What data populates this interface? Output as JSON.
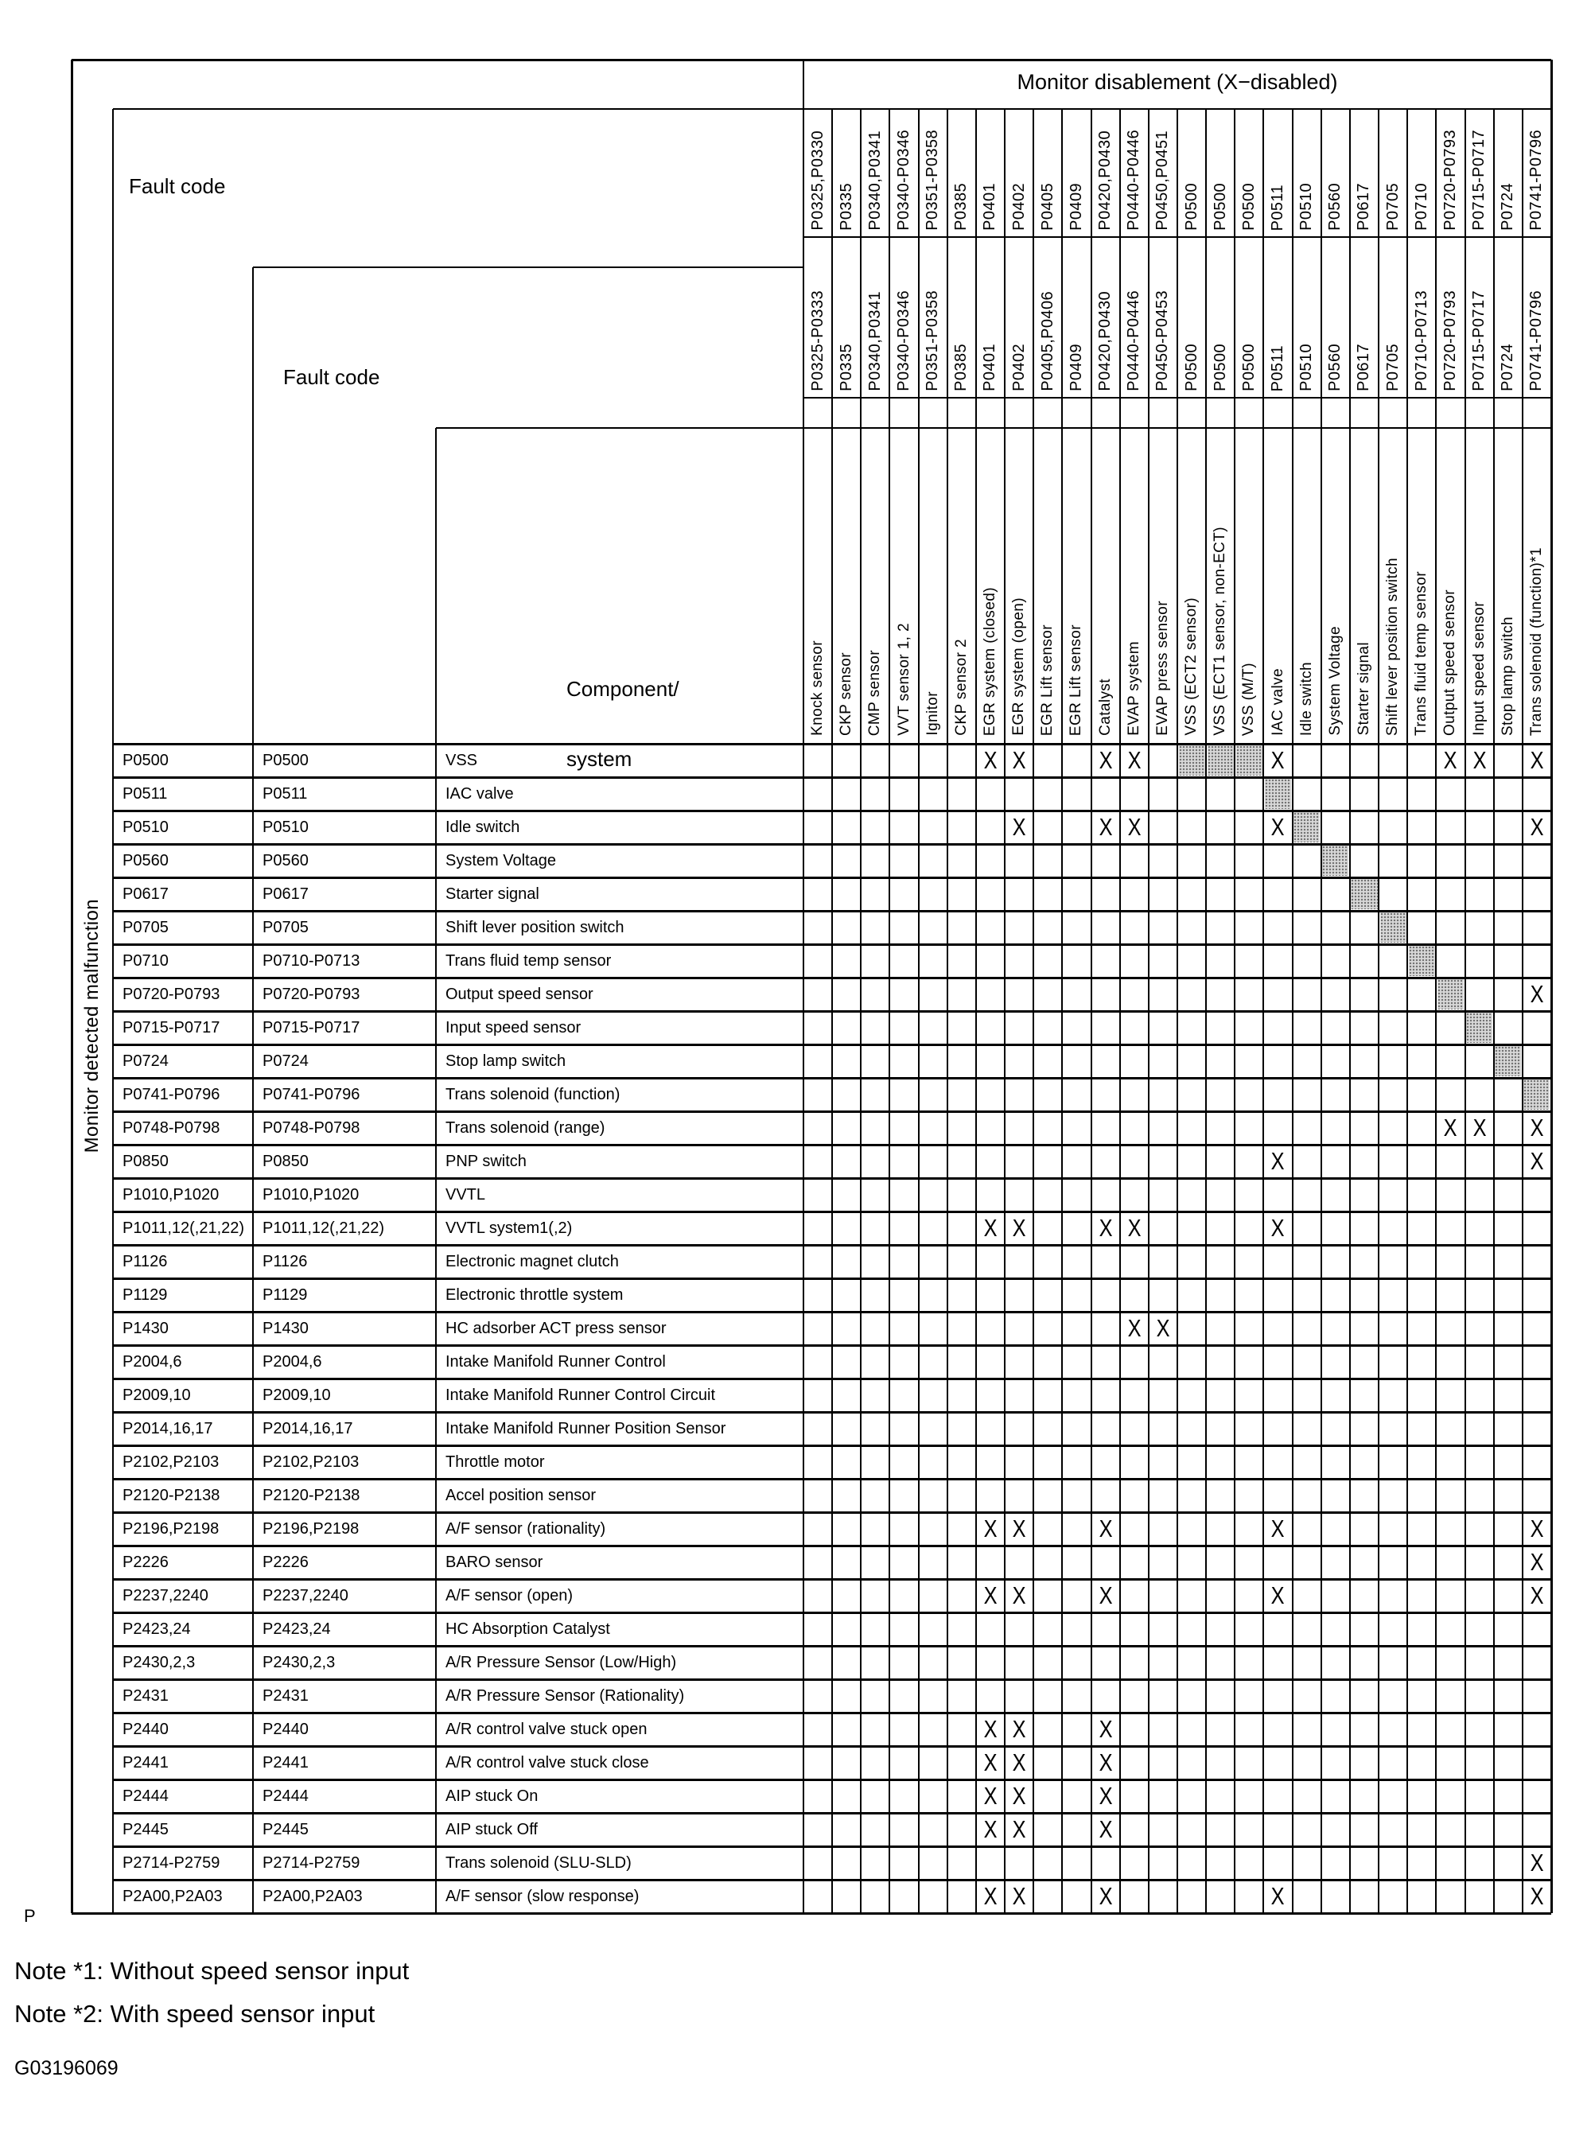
{
  "title": "Monitor disablement (X−disabled)",
  "left_label": "Monitor detected malfunction",
  "header": {
    "fault_code_label_1": "Fault code",
    "fault_code_label_2": "Fault code",
    "component_label_line1": "Component/",
    "component_label_line2": "system"
  },
  "marks": {
    "disabled_glyph": "X"
  },
  "columns": [
    {
      "code_1": "P0325,P0330",
      "code_2": "P0325-P0333",
      "component": "Knock sensor"
    },
    {
      "code_1": "P0335",
      "code_2": "P0335",
      "component": "CKP sensor"
    },
    {
      "code_1": "P0340,P0341",
      "code_2": "P0340,P0341",
      "component": "CMP sensor"
    },
    {
      "code_1": "P0340-P0346",
      "code_2": "P0340-P0346",
      "component": "VVT sensor 1, 2"
    },
    {
      "code_1": "P0351-P0358",
      "code_2": "P0351-P0358",
      "component": "Ignitor"
    },
    {
      "code_1": "P0385",
      "code_2": "P0385",
      "component": "CKP sensor 2"
    },
    {
      "code_1": "P0401",
      "code_2": "P0401",
      "component": "EGR system (closed)"
    },
    {
      "code_1": "P0402",
      "code_2": "P0402",
      "component": "EGR system (open)"
    },
    {
      "code_1": "P0405",
      "code_2": "P0405,P0406",
      "component": "EGR Lift sensor"
    },
    {
      "code_1": "P0409",
      "code_2": "P0409",
      "component": "EGR Lift sensor"
    },
    {
      "code_1": "P0420,P0430",
      "code_2": "P0420,P0430",
      "component": "Catalyst"
    },
    {
      "code_1": "P0440-P0446",
      "code_2": "P0440-P0446",
      "component": "EVAP system"
    },
    {
      "code_1": "P0450,P0451",
      "code_2": "P0450-P0453",
      "component": "EVAP press sensor"
    },
    {
      "code_1": "P0500",
      "code_2": "P0500",
      "component": "VSS (ECT2 sensor)"
    },
    {
      "code_1": "P0500",
      "code_2": "P0500",
      "component": "VSS (ECT1 sensor, non-ECT)"
    },
    {
      "code_1": "P0500",
      "code_2": "P0500",
      "component": "VSS (M/T)"
    },
    {
      "code_1": "P0511",
      "code_2": "P0511",
      "component": "IAC valve"
    },
    {
      "code_1": "P0510",
      "code_2": "P0510",
      "component": "Idle switch"
    },
    {
      "code_1": "P0560",
      "code_2": "P0560",
      "component": "System Voltage"
    },
    {
      "code_1": "P0617",
      "code_2": "P0617",
      "component": "Starter signal"
    },
    {
      "code_1": "P0705",
      "code_2": "P0705",
      "component": "Shift lever position switch"
    },
    {
      "code_1": "P0710",
      "code_2": "P0710-P0713",
      "component": "Trans fluid temp sensor"
    },
    {
      "code_1": "P0720-P0793",
      "code_2": "P0720-P0793",
      "component": "Output speed sensor"
    },
    {
      "code_1": "P0715-P0717",
      "code_2": "P0715-P0717",
      "component": "Input speed sensor"
    },
    {
      "code_1": "P0724",
      "code_2": "P0724",
      "component": "Stop lamp switch"
    },
    {
      "code_1": "P0741-P0796",
      "code_2": "P0741-P0796",
      "component": "Trans solenoid (function)*1"
    }
  ],
  "rows": [
    {
      "code_1": "P0500",
      "code_2": "P0500",
      "component": "VSS",
      "x_marks": [
        7,
        8,
        11,
        12,
        17,
        23,
        24,
        26
      ],
      "gray_marks": [
        14,
        15,
        16
      ]
    },
    {
      "code_1": "P0511",
      "code_2": "P0511",
      "component": "IAC valve",
      "x_marks": [],
      "gray_marks": [
        17
      ]
    },
    {
      "code_1": "P0510",
      "code_2": "P0510",
      "component": "Idle switch",
      "x_marks": [
        8,
        11,
        12,
        17,
        26
      ],
      "gray_marks": [
        18
      ]
    },
    {
      "code_1": "P0560",
      "code_2": "P0560",
      "component": "System Voltage",
      "x_marks": [],
      "gray_marks": [
        19
      ]
    },
    {
      "code_1": "P0617",
      "code_2": "P0617",
      "component": "Starter signal",
      "x_marks": [],
      "gray_marks": [
        20
      ]
    },
    {
      "code_1": "P0705",
      "code_2": "P0705",
      "component": "Shift lever position switch",
      "x_marks": [],
      "gray_marks": [
        21
      ]
    },
    {
      "code_1": "P0710",
      "code_2": "P0710-P0713",
      "component": "Trans fluid temp sensor",
      "x_marks": [],
      "gray_marks": [
        22
      ]
    },
    {
      "code_1": "P0720-P0793",
      "code_2": "P0720-P0793",
      "component": "Output speed sensor",
      "x_marks": [
        26
      ],
      "gray_marks": [
        23
      ]
    },
    {
      "code_1": "P0715-P0717",
      "code_2": "P0715-P0717",
      "component": "Input speed sensor",
      "x_marks": [],
      "gray_marks": [
        24
      ]
    },
    {
      "code_1": "P0724",
      "code_2": "P0724",
      "component": "Stop lamp switch",
      "x_marks": [],
      "gray_marks": [
        25
      ]
    },
    {
      "code_1": "P0741-P0796",
      "code_2": "P0741-P0796",
      "component": "Trans solenoid (function)",
      "x_marks": [],
      "gray_marks": [
        26
      ]
    },
    {
      "code_1": "P0748-P0798",
      "code_2": "P0748-P0798",
      "component": "Trans solenoid (range)",
      "x_marks": [
        23,
        24,
        26
      ],
      "gray_marks": []
    },
    {
      "code_1": "P0850",
      "code_2": "P0850",
      "component": "PNP switch",
      "x_marks": [
        17,
        26
      ],
      "gray_marks": []
    },
    {
      "code_1": "P1010,P1020",
      "code_2": "P1010,P1020",
      "component": "VVTL",
      "x_marks": [],
      "gray_marks": []
    },
    {
      "code_1": "P1011,12(,21,22)",
      "code_2": "P1011,12(,21,22)",
      "component": "VVTL system1(,2)",
      "x_marks": [
        7,
        8,
        11,
        12,
        17
      ],
      "gray_marks": []
    },
    {
      "code_1": "P1126",
      "code_2": "P1126",
      "component": "Electronic magnet clutch",
      "x_marks": [],
      "gray_marks": []
    },
    {
      "code_1": "P1129",
      "code_2": "P1129",
      "component": "Electronic throttle system",
      "x_marks": [],
      "gray_marks": []
    },
    {
      "code_1": "P1430",
      "code_2": "P1430",
      "component": "HC adsorber ACT press sensor",
      "x_marks": [
        12,
        13
      ],
      "gray_marks": []
    },
    {
      "code_1": "P2004,6",
      "code_2": "P2004,6",
      "component": "Intake Manifold Runner Control",
      "x_marks": [],
      "gray_marks": []
    },
    {
      "code_1": "P2009,10",
      "code_2": "P2009,10",
      "component": "Intake Manifold Runner Control Circuit",
      "x_marks": [],
      "gray_marks": []
    },
    {
      "code_1": "P2014,16,17",
      "code_2": "P2014,16,17",
      "component": "Intake Manifold Runner Position Sensor",
      "x_marks": [],
      "gray_marks": []
    },
    {
      "code_1": "P2102,P2103",
      "code_2": "P2102,P2103",
      "component": "Throttle motor",
      "x_marks": [],
      "gray_marks": []
    },
    {
      "code_1": "P2120-P2138",
      "code_2": "P2120-P2138",
      "component": "Accel position sensor",
      "x_marks": [],
      "gray_marks": []
    },
    {
      "code_1": "P2196,P2198",
      "code_2": "P2196,P2198",
      "component": "A/F sensor (rationality)",
      "x_marks": [
        7,
        8,
        11,
        17,
        26
      ],
      "gray_marks": []
    },
    {
      "code_1": "P2226",
      "code_2": "P2226",
      "component": "BARO sensor",
      "x_marks": [
        26
      ],
      "gray_marks": []
    },
    {
      "code_1": "P2237,2240",
      "code_2": "P2237,2240",
      "component": "A/F sensor (open)",
      "x_marks": [
        7,
        8,
        11,
        17,
        26
      ],
      "gray_marks": []
    },
    {
      "code_1": "P2423,24",
      "code_2": "P2423,24",
      "component": "HC Absorption Catalyst",
      "x_marks": [],
      "gray_marks": []
    },
    {
      "code_1": "P2430,2,3",
      "code_2": "P2430,2,3",
      "component": "A/R Pressure Sensor (Low/High)",
      "x_marks": [],
      "gray_marks": []
    },
    {
      "code_1": "P2431",
      "code_2": "P2431",
      "component": "A/R Pressure Sensor (Rationality)",
      "x_marks": [],
      "gray_marks": []
    },
    {
      "code_1": "P2440",
      "code_2": "P2440",
      "component": "A/R control valve stuck open",
      "x_marks": [
        7,
        8,
        11
      ],
      "gray_marks": []
    },
    {
      "code_1": "P2441",
      "code_2": "P2441",
      "component": "A/R control valve stuck close",
      "x_marks": [
        7,
        8,
        11
      ],
      "gray_marks": []
    },
    {
      "code_1": "P2444",
      "code_2": "P2444",
      "component": "AIP stuck On",
      "x_marks": [
        7,
        8,
        11
      ],
      "gray_marks": []
    },
    {
      "code_1": "P2445",
      "code_2": "P2445",
      "component": "AIP stuck Off",
      "x_marks": [
        7,
        8,
        11
      ],
      "gray_marks": []
    },
    {
      "code_1": "P2714-P2759",
      "code_2": "P2714-P2759",
      "component": "Trans solenoid (SLU-SLD)",
      "x_marks": [
        26
      ],
      "gray_marks": []
    },
    {
      "code_1": "P2A00,P2A03",
      "code_2": "P2A00,P2A03",
      "component": "A/F sensor (slow response)",
      "x_marks": [
        7,
        8,
        11,
        17,
        26
      ],
      "gray_marks": []
    }
  ],
  "footer": {
    "page_marker": "P",
    "note_1": "Note *1: Without speed sensor input",
    "note_2": "Note *2: With speed sensor input",
    "figure_id": "G03196069"
  }
}
